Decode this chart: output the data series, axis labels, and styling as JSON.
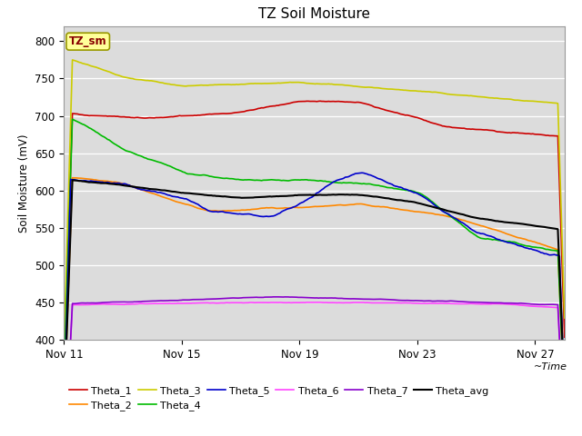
{
  "title": "TZ Soil Moisture",
  "xlabel": "~Time",
  "ylabel": "Soil Moisture (mV)",
  "ylim": [
    400,
    820
  ],
  "yticks": [
    400,
    450,
    500,
    550,
    600,
    650,
    700,
    750,
    800
  ],
  "bg_color": "#dcdcdc",
  "fig_color": "#ffffff",
  "legend_box_label": "TZ_sm",
  "legend_box_color": "#ffff99",
  "legend_box_border": "#999900",
  "series_colors": {
    "Theta_1": "#cc0000",
    "Theta_2": "#ff8800",
    "Theta_3": "#cccc00",
    "Theta_4": "#00bb00",
    "Theta_5": "#0000cc",
    "Theta_6": "#ff44ff",
    "Theta_7": "#8800cc",
    "Theta_avg": "#000000"
  },
  "xtick_labels": [
    "Nov 11",
    "Nov 15",
    "Nov 19",
    "Nov 23",
    "Nov 27"
  ],
  "xtick_positions": [
    0,
    4,
    8,
    12,
    16
  ]
}
